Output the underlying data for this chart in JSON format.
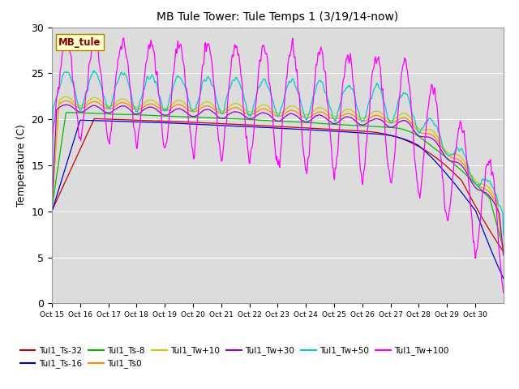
{
  "title": "MB Tule Tower: Tule Temps 1 (3/19/14-now)",
  "ylabel": "Temperature (C)",
  "xlim": [
    0,
    16
  ],
  "ylim": [
    0,
    30
  ],
  "yticks": [
    0,
    5,
    10,
    15,
    20,
    25,
    30
  ],
  "xtick_labels": [
    "Oct 15",
    "Oct 16",
    "Oct 17",
    "Oct 18",
    "Oct 19",
    "Oct 20",
    "Oct 21",
    "Oct 22",
    "Oct 23",
    "Oct 24",
    "Oct 25",
    "Oct 26",
    "Oct 27",
    "Oct 28",
    "Oct 29",
    "Oct 30"
  ],
  "background_color": "#dcdcdc",
  "legend_box_label": "MB_tule",
  "legend_box_color": "#ffffcc",
  "legend_box_border": "#aa8800",
  "series": [
    {
      "name": "Tul1_Ts-32",
      "color": "#cc0000"
    },
    {
      "name": "Tul1_Ts-16",
      "color": "#0000cc"
    },
    {
      "name": "Tul1_Ts-8",
      "color": "#00bb00"
    },
    {
      "name": "Tul1_Ts0",
      "color": "#ff8800"
    },
    {
      "name": "Tul1_Tw+10",
      "color": "#cccc00"
    },
    {
      "name": "Tul1_Tw+30",
      "color": "#9900cc"
    },
    {
      "name": "Tul1_Tw+50",
      "color": "#00cccc"
    },
    {
      "name": "Tul1_Tw+100",
      "color": "#ff00ff"
    }
  ]
}
